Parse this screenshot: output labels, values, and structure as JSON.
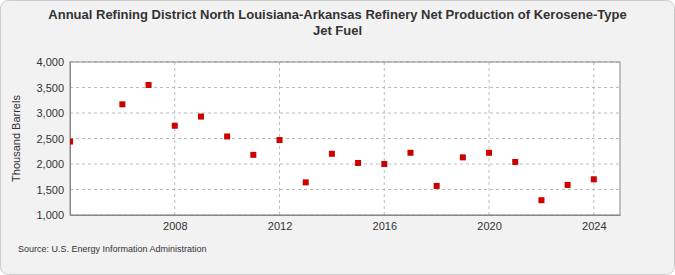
{
  "chart_data": {
    "type": "scatter",
    "title": "Annual Refining District North Louisiana-Arkansas Refinery Net Production of Kerosene-Type Jet Fuel",
    "y_label": "Thousand Barrels",
    "source": "Source: U.S. Energy Information Administration",
    "x": [
      2004,
      2006,
      2007,
      2008,
      2009,
      2010,
      2011,
      2012,
      2013,
      2014,
      2015,
      2016,
      2017,
      2018,
      2019,
      2020,
      2021,
      2022,
      2023,
      2024
    ],
    "values": [
      2440,
      3170,
      3550,
      2750,
      2930,
      2540,
      2180,
      2470,
      1640,
      2200,
      2020,
      2000,
      2220,
      1570,
      2130,
      2220,
      2040,
      1290,
      1590,
      1700
    ],
    "color": "#cc0000",
    "marker": "square",
    "grid": true,
    "xlim": [
      2004,
      2025
    ],
    "xticks": [
      2008,
      2012,
      2016,
      2020,
      2024
    ],
    "ylim": [
      1000,
      4000
    ],
    "yticks": [
      {
        "value": 1000,
        "label": "1,000"
      },
      {
        "value": 1500,
        "label": "1,500"
      },
      {
        "value": 2000,
        "label": "2,000"
      },
      {
        "value": 2500,
        "label": "2,500"
      },
      {
        "value": 3000,
        "label": "3,000"
      },
      {
        "value": 3500,
        "label": "3,500"
      },
      {
        "value": 4000,
        "label": "4,000"
      }
    ]
  }
}
